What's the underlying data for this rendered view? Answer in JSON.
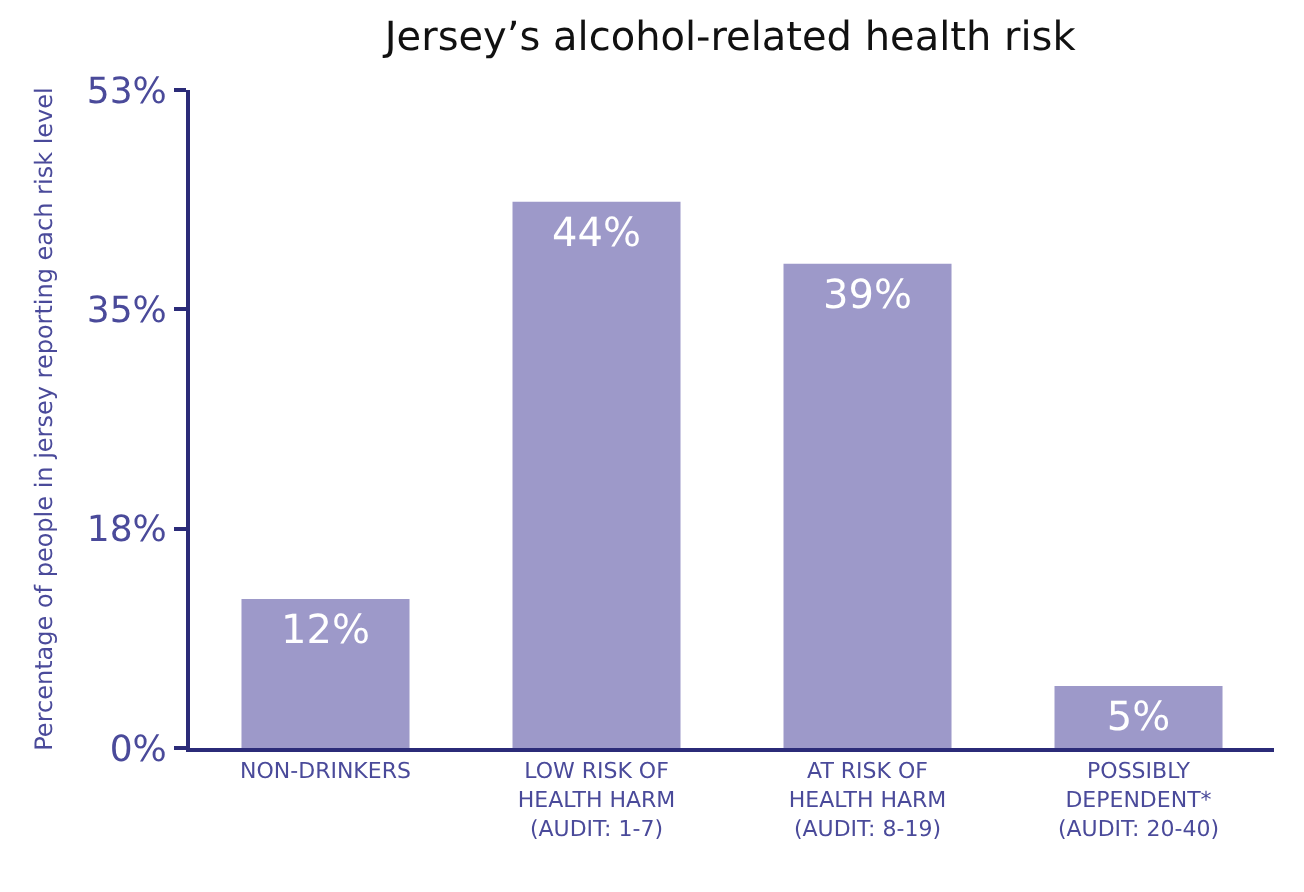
{
  "chart_data": {
    "type": "bar",
    "title": "Jersey’s alcohol-related health risk",
    "ylabel": "Percentage of people in jersey reporting each risk level",
    "categories": [
      "NON-DRINKERS",
      "LOW RISK OF\nHEALTH HARM\n(AUDIT: 1-7)",
      "AT RISK OF\nHEALTH HARM\n(AUDIT: 8-19)",
      "POSSIBLY\nDEPENDENT*\n(AUDIT: 20-40)"
    ],
    "values": [
      12,
      44,
      39,
      5
    ],
    "value_labels": [
      "12%",
      "44%",
      "39%",
      "5%"
    ],
    "color": "#9d99c9",
    "ylim": [
      0,
      53
    ],
    "yticks": [
      {
        "value": 0,
        "label": "0%"
      },
      {
        "value": 17.67,
        "label": "18%"
      },
      {
        "value": 35.33,
        "label": "35%"
      },
      {
        "value": 53,
        "label": "53%"
      }
    ],
    "grid": false,
    "legend": false
  }
}
